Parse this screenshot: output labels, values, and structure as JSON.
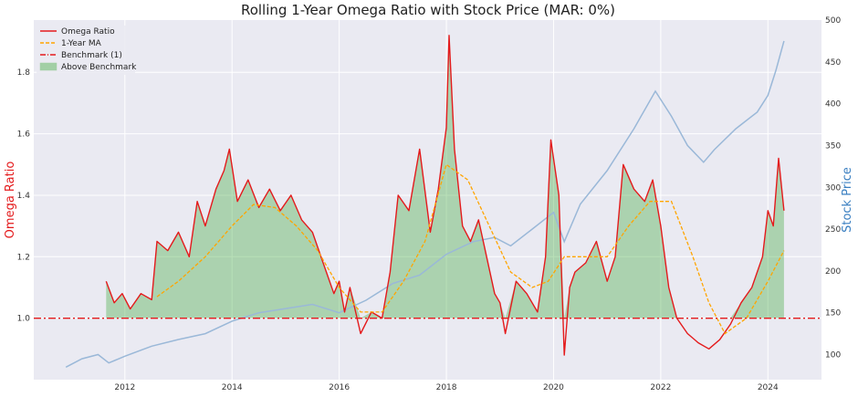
{
  "chart_data": {
    "type": "line",
    "title": "Rolling 1-Year Omega Ratio with Stock Price (MAR: 0%)",
    "xlabel": "",
    "ylabel": "Omega Ratio",
    "ylabel_right": "Stock Price",
    "x_ticks": [
      "2012",
      "2014",
      "2016",
      "2018",
      "2020",
      "2022",
      "2024"
    ],
    "y_ticks": [
      "1.0",
      "1.2",
      "1.4",
      "1.6",
      "1.8"
    ],
    "y_right_ticks": [
      "100",
      "150",
      "200",
      "250",
      "300",
      "350",
      "400",
      "450",
      "500"
    ],
    "xlim": [
      2010.3,
      2025.0
    ],
    "ylim": [
      0.8,
      1.97
    ],
    "ylim_right": [
      70,
      500
    ],
    "benchmark": 1.0,
    "grid": true,
    "legend_position": "top-left",
    "legend": [
      {
        "label": "Omega Ratio",
        "style": "solid",
        "color": "#e41a1c"
      },
      {
        "label": "1-Year MA",
        "style": "dashed",
        "color": "#ffa500"
      },
      {
        "label": "Benchmark (1)",
        "style": "dashdot",
        "color": "#e41a1c"
      },
      {
        "label": "Above Benchmark",
        "style": "fill",
        "color": "#4daf4a"
      }
    ],
    "series": [
      {
        "name": "Omega Ratio",
        "axis": "left",
        "color": "#e41a1c",
        "x": [
          2011.65,
          2011.8,
          2011.95,
          2012.1,
          2012.3,
          2012.5,
          2012.6,
          2012.8,
          2013.0,
          2013.2,
          2013.35,
          2013.5,
          2013.7,
          2013.85,
          2013.95,
          2014.1,
          2014.3,
          2014.5,
          2014.7,
          2014.9,
          2015.1,
          2015.3,
          2015.5,
          2015.7,
          2015.9,
          2016.0,
          2016.1,
          2016.2,
          2016.4,
          2016.6,
          2016.8,
          2016.95,
          2017.1,
          2017.3,
          2017.5,
          2017.7,
          2017.85,
          2018.0,
          2018.05,
          2018.15,
          2018.3,
          2018.45,
          2018.6,
          2018.75,
          2018.9,
          2019.0,
          2019.1,
          2019.3,
          2019.5,
          2019.7,
          2019.85,
          2019.95,
          2020.1,
          2020.2,
          2020.3,
          2020.4,
          2020.6,
          2020.8,
          2021.0,
          2021.15,
          2021.3,
          2021.5,
          2021.7,
          2021.85,
          2022.0,
          2022.15,
          2022.3,
          2022.5,
          2022.7,
          2022.9,
          2023.1,
          2023.3,
          2023.5,
          2023.7,
          2023.9,
          2024.0,
          2024.1,
          2024.2,
          2024.3
        ],
        "values": [
          1.12,
          1.05,
          1.08,
          1.03,
          1.08,
          1.06,
          1.25,
          1.22,
          1.28,
          1.2,
          1.38,
          1.3,
          1.42,
          1.48,
          1.55,
          1.38,
          1.45,
          1.36,
          1.42,
          1.35,
          1.4,
          1.32,
          1.28,
          1.18,
          1.08,
          1.12,
          1.02,
          1.1,
          0.95,
          1.02,
          1.0,
          1.15,
          1.4,
          1.35,
          1.55,
          1.28,
          1.42,
          1.62,
          1.92,
          1.55,
          1.3,
          1.25,
          1.32,
          1.2,
          1.08,
          1.05,
          0.95,
          1.12,
          1.08,
          1.02,
          1.2,
          1.58,
          1.4,
          0.88,
          1.1,
          1.15,
          1.18,
          1.25,
          1.12,
          1.2,
          1.5,
          1.42,
          1.38,
          1.45,
          1.3,
          1.1,
          1.0,
          0.95,
          0.92,
          0.9,
          0.93,
          0.98,
          1.05,
          1.1,
          1.2,
          1.35,
          1.3,
          1.52,
          1.35
        ]
      },
      {
        "name": "1-Year MA",
        "axis": "left",
        "color": "#ffa500",
        "x": [
          2012.6,
          2013.0,
          2013.5,
          2014.0,
          2014.4,
          2014.8,
          2015.2,
          2015.6,
          2016.0,
          2016.4,
          2016.8,
          2017.2,
          2017.6,
          2018.0,
          2018.4,
          2018.8,
          2019.2,
          2019.6,
          2019.9,
          2020.2,
          2020.6,
          2021.0,
          2021.4,
          2021.8,
          2022.2,
          2022.6,
          2022.9,
          2023.2,
          2023.6,
          2024.0,
          2024.3
        ],
        "values": [
          1.07,
          1.12,
          1.2,
          1.3,
          1.37,
          1.36,
          1.3,
          1.22,
          1.1,
          1.02,
          1.02,
          1.12,
          1.25,
          1.5,
          1.45,
          1.3,
          1.15,
          1.1,
          1.12,
          1.2,
          1.2,
          1.2,
          1.3,
          1.38,
          1.38,
          1.2,
          1.05,
          0.95,
          1.0,
          1.12,
          1.22
        ]
      },
      {
        "name": "Stock Price",
        "axis": "right",
        "color": "#9ab8d8",
        "x": [
          2010.9,
          2011.2,
          2011.5,
          2011.7,
          2012.0,
          2012.5,
          2013.0,
          2013.5,
          2014.0,
          2014.5,
          2015.0,
          2015.5,
          2016.0,
          2016.5,
          2017.0,
          2017.5,
          2018.0,
          2018.5,
          2018.9,
          2019.2,
          2019.6,
          2020.0,
          2020.2,
          2020.5,
          2021.0,
          2021.5,
          2021.9,
          2022.2,
          2022.5,
          2022.8,
          2023.0,
          2023.4,
          2023.8,
          2024.0,
          2024.15,
          2024.3
        ],
        "values": [
          85,
          95,
          100,
          90,
          98,
          110,
          118,
          125,
          140,
          150,
          155,
          160,
          150,
          165,
          185,
          195,
          220,
          235,
          240,
          230,
          250,
          270,
          235,
          280,
          320,
          370,
          415,
          385,
          350,
          330,
          345,
          370,
          390,
          410,
          440,
          475
        ]
      }
    ]
  }
}
